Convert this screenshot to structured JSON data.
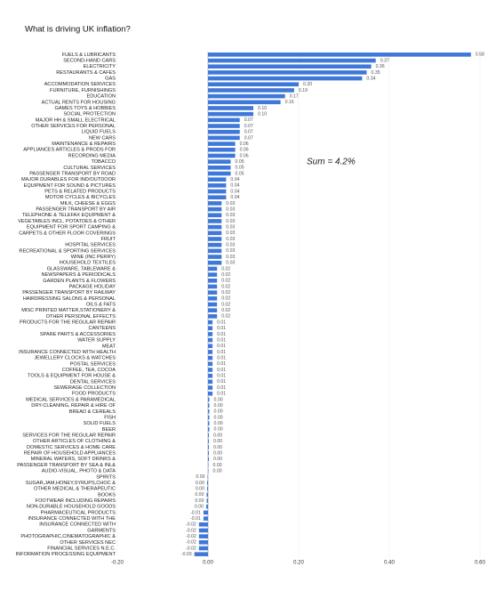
{
  "chart_data": {
    "type": "hbar",
    "title": "What is driving UK inflation?",
    "annotation": "Sum = 4.2%",
    "color": "#3f78d8",
    "grid": true,
    "xlim": [
      -0.2,
      0.6
    ],
    "xticks": [
      {
        "value": -0.2,
        "label": "-0.20"
      },
      {
        "value": 0,
        "label": "0.00"
      },
      {
        "value": 0.2,
        "label": "0.20"
      },
      {
        "value": 0.4,
        "label": "0.40"
      },
      {
        "value": 0.6,
        "label": "0.60"
      }
    ],
    "categories": [
      "FUELS & LUBRICANTS",
      "SECOND-HAND CARS",
      "ELECTRICITY",
      "RESTAURANTS & CAFES",
      "GAS",
      "ACCOMMODATION SERVICES",
      "FURNITURE, FURNISHINGS",
      "EDUCATION",
      "ACTUAL RENTS FOR HOUSING",
      "GAMES TOYS & HOBBIES",
      "SOCIAL PROTECTION",
      "MAJOR HH & SMALL ELECTRICAL",
      "OTHER SERVICES FOR PERSONAL",
      "LIQUID FUELS",
      "NEW CARS",
      "MAINTENANCE & REPAIRS",
      "APPLIANCES ARTICLES & PRODS FOR",
      "RECORDING MEDIA",
      "TOBACCO",
      "CULTURAL SERVICES",
      "PASSENGER TRANSPORT BY ROAD",
      "MAJOR DURABLES FOR IND/OUTDOOR",
      "EQUIPMENT FOR SOUND & PICTURES",
      "PETS & RELATED PRODUCTS",
      "MOTOR CYCLES & BICYCLES",
      "MILK, CHEESE & EGGS",
      "PASSENGER TRANSPORT BY AIR",
      "TELEPHONE & TELEFAX EQUIPMENT &",
      "VEGETABLES INCL. POTATOES & OTHER",
      "EQUIPMENT FOR SPORT CAMPING &",
      "CARPETS & OTHER FLOOR COVERINGS",
      "FRUIT",
      "HOSPITAL SERVICES",
      "RECREATIONAL & SPORTING SERVICES",
      "WINE (INC PERRY)",
      "HOUSEHOLD TEXTILES",
      "GLASSWARE, TABLEWARE &",
      "NEWSPAPERS & PERIODICALS",
      "GARDEN PLANTS & FLOWERS",
      "PACKAGE HOLIDAY",
      "PASSENGER TRANSPORT BY RAILWAY",
      "HAIRDRESSING SALONS & PERSONAL",
      "OILS & FATS",
      "MISC PRINTED MATTER,STATIONERY &",
      "OTHER PERSONAL EFFECTS",
      "PRODUCTS FOR THE REGULAR REPAIR",
      "CANTEENS",
      "SPARE PARTS & ACCESSORIES",
      "WATER SUPPLY",
      "MEAT",
      "INSURANCE CONNECTED WITH HEALTH",
      "JEWELLERY CLOCKS & WATCHES",
      "POSTAL SERVICES",
      "COFFEE, TEA, COCOA",
      "TOOLS & EQUIPMENT FOR HOUSE &",
      "DENTAL SERVICES",
      "SEWERAGE COLLECTION",
      "FOOD PRODUCTS",
      "MEDICAL SERVICES & PARAMEDICAL",
      "DRY-CLEANING, REPAIR & HIRE OF",
      "BREAD & CEREALS",
      "FISH",
      "SOLID FUELS",
      "BEER",
      "SERVICES FOR THE REGULAR REPAIR",
      "OTHER ARTICLES OF CLOTHING &",
      "DOMESTIC SERVICES & HOME CARE",
      "REPAIR OF HOUSEHOLD APPLIANCES",
      "MINERAL WATERS, SOFT DRINKS &",
      "PASSENGER TRANSPORT BY SEA & INL&",
      "AUDIO-VISUAL, PHOTO & DATA",
      "SPIRITS",
      "SUGAR,JAM,HONEY,SYRUPS,CHOC &",
      "OTHER MEDICAL & THERAPEUTIC",
      "BOOKS",
      "FOOTWEAR INCLUDING REPAIRS",
      "NON-DURABLE HOUSEHOLD GOODS",
      "PHARMACEUTICAL PRODUCTS",
      "INSURANCE CONNECTED WITH THE",
      "INSURANCE CONNECTED WITH",
      "GARMENTS",
      "PHOTOGRAPHIC,CINEMATOGRAPHIC &",
      "OTHER SERVICES NEC",
      "FINANCIAL SERVICES N.E.C.",
      "INFORMATION PROCESSING EQUIPMENT"
    ],
    "values": [
      0.58,
      0.37,
      0.36,
      0.35,
      0.34,
      0.2,
      0.19,
      0.17,
      0.16,
      0.1,
      0.1,
      0.07,
      0.07,
      0.07,
      0.07,
      0.06,
      0.06,
      0.06,
      0.05,
      0.05,
      0.05,
      0.04,
      0.04,
      0.04,
      0.04,
      0.03,
      0.03,
      0.03,
      0.03,
      0.03,
      0.03,
      0.03,
      0.03,
      0.03,
      0.03,
      0.03,
      0.02,
      0.02,
      0.02,
      0.02,
      0.02,
      0.02,
      0.02,
      0.02,
      0.02,
      0.01,
      0.01,
      0.01,
      0.01,
      0.01,
      0.01,
      0.01,
      0.01,
      0.01,
      0.01,
      0.01,
      0.01,
      0.01,
      0.003,
      0.003,
      0.003,
      0.003,
      0.003,
      0.003,
      0.002,
      0.002,
      0.002,
      0.002,
      0.002,
      0.001,
      0.001,
      -0.001,
      -0.002,
      -0.002,
      -0.003,
      -0.003,
      -0.004,
      -0.01,
      -0.01,
      -0.02,
      -0.02,
      -0.02,
      -0.02,
      -0.02,
      -0.03
    ],
    "value_labels": [
      "0.58",
      "0.37",
      "0.36",
      "0.35",
      "0.34",
      "0.20",
      "0.19",
      "0.17",
      "0.16",
      "0.10",
      "0.10",
      "0.07",
      "0.07",
      "0.07",
      "0.07",
      "0.06",
      "0.06",
      "0.06",
      "0.05",
      "0.05",
      "0.05",
      "0.04",
      "0.04",
      "0.04",
      "0.04",
      "0.03",
      "0.03",
      "0.03",
      "0.03",
      "0.03",
      "0.03",
      "0.03",
      "0.03",
      "0.03",
      "0.03",
      "0.03",
      "0.02",
      "0.02",
      "0.02",
      "0.02",
      "0.02",
      "0.02",
      "0.02",
      "0.02",
      "0.02",
      "0.01",
      "0.01",
      "0.01",
      "0.01",
      "0.01",
      "0.01",
      "0.01",
      "0.01",
      "0.01",
      "0.01",
      "0.01",
      "0.01",
      "0.01",
      "0.00",
      "0.00",
      "0.00",
      "0.00",
      "0.00",
      "0.00",
      "0.00",
      "0.00",
      "0.00",
      "0.00",
      "0.00",
      "0.00",
      "0.00",
      "0.00",
      "0.00",
      "0.00",
      "0.00",
      "0.00",
      "0.00",
      "-0.01",
      "-0.01",
      "-0.02",
      "-0.02",
      "-0.02",
      "-0.02",
      "-0.02",
      "-0.03"
    ]
  }
}
